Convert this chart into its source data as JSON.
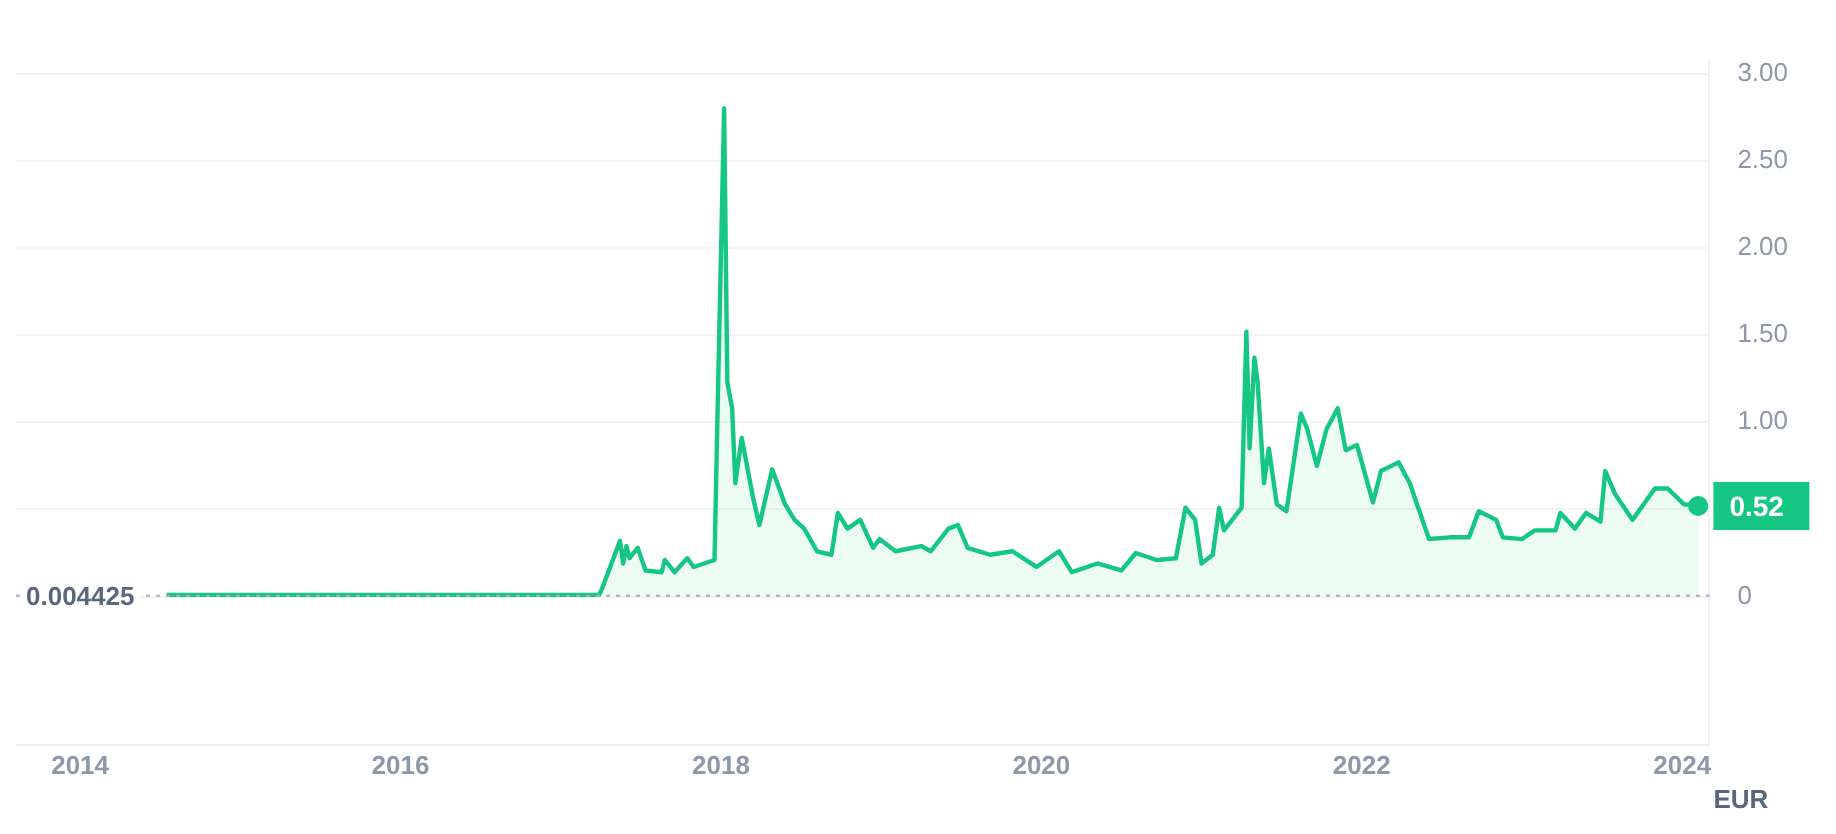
{
  "chart_data": {
    "type": "area",
    "ylabel": "EUR",
    "x": [
      2014.54,
      2014.98,
      2015.3,
      2017.24,
      2017.26,
      2017.37,
      2017.39,
      2017.41,
      2017.43,
      2017.48,
      2017.53,
      2017.63,
      2017.65,
      2017.71,
      2017.79,
      2017.83,
      2017.96,
      2017.98,
      2018.02,
      2018.04,
      2018.07,
      2018.09,
      2018.13,
      2018.2,
      2018.24,
      2018.32,
      2018.4,
      2018.46,
      2018.52,
      2018.6,
      2018.69,
      2018.73,
      2018.79,
      2018.87,
      2018.95,
      2018.99,
      2019.09,
      2019.25,
      2019.31,
      2019.42,
      2019.48,
      2019.54,
      2019.68,
      2019.82,
      2019.97,
      2020.11,
      2020.19,
      2020.35,
      2020.5,
      2020.59,
      2020.72,
      2020.84,
      2020.9,
      2020.96,
      2021.0,
      2021.07,
      2021.11,
      2021.14,
      2021.25,
      2021.28,
      2021.3,
      2021.33,
      2021.35,
      2021.39,
      2021.42,
      2021.47,
      2021.53,
      2021.62,
      2021.66,
      2021.72,
      2021.78,
      2021.85,
      2021.9,
      2021.97,
      2022.07,
      2022.12,
      2022.23,
      2022.3,
      2022.42,
      2022.55,
      2022.67,
      2022.73,
      2022.84,
      2022.88,
      2023.0,
      2023.08,
      2023.21,
      2023.24,
      2023.33,
      2023.4,
      2023.49,
      2023.52,
      2023.58,
      2023.69,
      2023.83,
      2023.91,
      2024.01,
      2024.1
    ],
    "series": [
      {
        "color": "#16c784",
        "values": [
          0.01,
          0.01,
          0.01,
          0.01,
          0.05,
          0.32,
          0.19,
          0.29,
          0.22,
          0.28,
          0.15,
          0.14,
          0.21,
          0.14,
          0.22,
          0.17,
          0.21,
          1.1,
          2.8,
          1.23,
          1.08,
          0.65,
          0.91,
          0.57,
          0.41,
          0.73,
          0.53,
          0.44,
          0.39,
          0.26,
          0.24,
          0.48,
          0.39,
          0.44,
          0.28,
          0.33,
          0.26,
          0.29,
          0.26,
          0.39,
          0.41,
          0.28,
          0.24,
          0.26,
          0.17,
          0.26,
          0.14,
          0.19,
          0.15,
          0.25,
          0.21,
          0.22,
          0.51,
          0.44,
          0.19,
          0.24,
          0.51,
          0.38,
          0.51,
          1.52,
          0.85,
          1.37,
          1.23,
          0.65,
          0.85,
          0.53,
          0.49,
          1.05,
          0.96,
          0.75,
          0.96,
          1.08,
          0.84,
          0.87,
          0.54,
          0.72,
          0.77,
          0.65,
          0.33,
          0.34,
          0.34,
          0.49,
          0.44,
          0.34,
          0.33,
          0.38,
          0.38,
          0.48,
          0.39,
          0.48,
          0.43,
          0.72,
          0.59,
          0.44,
          0.62,
          0.62,
          0.53,
          0.52
        ]
      }
    ],
    "xlim": [
      2013.6,
      2024.17
    ],
    "xticks": [
      2014,
      2016,
      2018,
      2020,
      2022,
      2024
    ],
    "ylim": [
      -0.85,
      3.08
    ],
    "yticks": [
      0,
      {
        "value": 0.5,
        "label": null
      },
      {
        "value": 1,
        "label": "1.00"
      },
      {
        "value": 1.5,
        "label": "1.50"
      },
      {
        "value": 2,
        "label": "2.00"
      },
      {
        "value": 2.5,
        "label": "2.50"
      },
      {
        "value": 3,
        "label": "3.00"
      }
    ],
    "grid": "y",
    "marker": "none",
    "line_style": "solid",
    "ref_lines": [
      {
        "axis": "y",
        "value": 0.004425,
        "label": "0.004425",
        "color": "#a6b0c3",
        "line_style": "dotted"
      }
    ],
    "annotations": [
      {
        "text": "0.52",
        "x": 2024.1,
        "y": 0.52
      }
    ]
  }
}
